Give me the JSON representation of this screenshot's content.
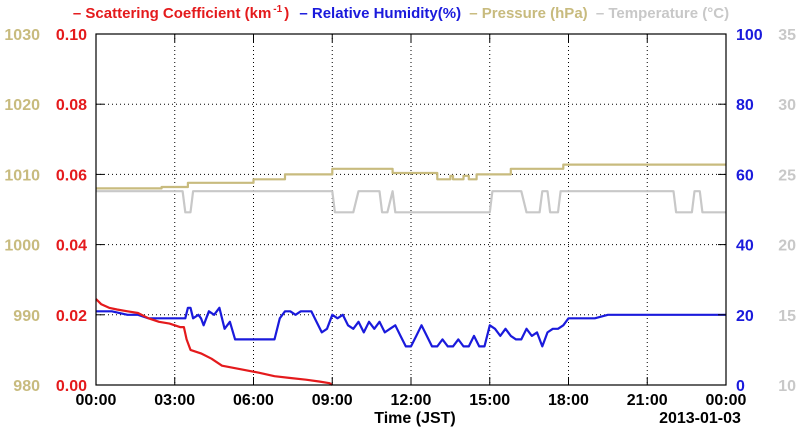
{
  "legend": {
    "scattering": "– Scattering Coefficient (km",
    "scattering_sup": "-1",
    "scattering_close": ")",
    "humidity": "– Relative Humidity(%)",
    "pressure": "– Pressure (hPa)",
    "temperature": "– Temperature (°C)"
  },
  "colors": {
    "scattering": "#e41a1c",
    "humidity": "#1a1adc",
    "pressure": "#c8bb7e",
    "temperature": "#c8c8c8"
  },
  "chart_data": {
    "type": "line",
    "xlabel": "Time (JST)",
    "date_label": "2013-01-03",
    "x_ticks": [
      "00:00",
      "03:00",
      "06:00",
      "09:00",
      "12:00",
      "15:00",
      "18:00",
      "21:00",
      "00:00"
    ],
    "xlim_hours": [
      0,
      24
    ],
    "axes": {
      "pressure": {
        "ticks": [
          "1030",
          "1020",
          "1010",
          "1000",
          "990",
          "980"
        ],
        "range": [
          980,
          1030
        ]
      },
      "scattering": {
        "ticks": [
          "0.10",
          "0.08",
          "0.06",
          "0.04",
          "0.02",
          "0.00"
        ],
        "range": [
          0,
          0.1
        ]
      },
      "humidity": {
        "ticks": [
          "100",
          "80",
          "60",
          "40",
          "20",
          "0"
        ],
        "range": [
          0,
          100
        ]
      },
      "temperature": {
        "ticks": [
          "35",
          "30",
          "25",
          "20",
          "15",
          "10"
        ],
        "range": [
          10,
          35
        ]
      }
    },
    "grid": true,
    "series": [
      {
        "name": "Scattering Coefficient (km-1)",
        "axis": "scattering",
        "points": [
          [
            0,
            0.0245
          ],
          [
            0.2,
            0.023
          ],
          [
            0.5,
            0.022
          ],
          [
            0.8,
            0.0215
          ],
          [
            1.2,
            0.021
          ],
          [
            1.6,
            0.0205
          ],
          [
            2.0,
            0.019
          ],
          [
            2.4,
            0.018
          ],
          [
            2.8,
            0.0175
          ],
          [
            3.2,
            0.0165
          ],
          [
            3.35,
            0.0165
          ],
          [
            3.45,
            0.013
          ],
          [
            3.6,
            0.01
          ],
          [
            4.0,
            0.009
          ],
          [
            4.4,
            0.0075
          ],
          [
            4.8,
            0.0055
          ],
          [
            5.5,
            0.0045
          ],
          [
            6.2,
            0.0035
          ],
          [
            6.8,
            0.0025
          ],
          [
            7.4,
            0.002
          ],
          [
            8.0,
            0.0015
          ],
          [
            8.5,
            0.001
          ],
          [
            8.9,
            0.0005
          ],
          [
            9.0,
            0.0
          ]
        ]
      },
      {
        "name": "Relative Humidity(%)",
        "axis": "humidity",
        "points": [
          [
            0,
            21
          ],
          [
            0.6,
            21
          ],
          [
            1.2,
            20
          ],
          [
            1.6,
            20
          ],
          [
            2.0,
            19
          ],
          [
            3.0,
            19
          ],
          [
            3.2,
            19
          ],
          [
            3.4,
            19
          ],
          [
            3.5,
            22
          ],
          [
            3.6,
            22
          ],
          [
            3.7,
            19
          ],
          [
            3.9,
            20
          ],
          [
            4.0,
            19
          ],
          [
            4.1,
            17
          ],
          [
            4.3,
            21
          ],
          [
            4.5,
            20
          ],
          [
            4.7,
            22
          ],
          [
            4.9,
            16
          ],
          [
            5.1,
            18
          ],
          [
            5.3,
            13
          ],
          [
            6.0,
            13
          ],
          [
            6.3,
            13
          ],
          [
            6.5,
            13
          ],
          [
            6.8,
            13
          ],
          [
            7.0,
            19
          ],
          [
            7.2,
            21
          ],
          [
            7.4,
            21
          ],
          [
            7.6,
            20
          ],
          [
            7.8,
            21
          ],
          [
            8.0,
            21
          ],
          [
            8.2,
            21
          ],
          [
            8.4,
            18
          ],
          [
            8.6,
            15
          ],
          [
            8.8,
            16
          ],
          [
            9.0,
            20
          ],
          [
            9.2,
            19
          ],
          [
            9.4,
            20
          ],
          [
            9.6,
            17
          ],
          [
            9.8,
            16
          ],
          [
            10.0,
            18
          ],
          [
            10.2,
            15
          ],
          [
            10.4,
            18
          ],
          [
            10.6,
            16
          ],
          [
            10.8,
            18
          ],
          [
            11.0,
            15
          ],
          [
            11.2,
            16
          ],
          [
            11.4,
            17
          ],
          [
            11.6,
            14
          ],
          [
            11.8,
            11
          ],
          [
            12.0,
            11
          ],
          [
            12.2,
            14
          ],
          [
            12.4,
            17
          ],
          [
            12.6,
            14
          ],
          [
            12.8,
            11
          ],
          [
            13.0,
            11
          ],
          [
            13.2,
            13
          ],
          [
            13.4,
            11
          ],
          [
            13.6,
            11
          ],
          [
            13.8,
            13
          ],
          [
            14.0,
            11
          ],
          [
            14.2,
            11
          ],
          [
            14.4,
            14
          ],
          [
            14.6,
            11
          ],
          [
            14.8,
            11
          ],
          [
            15.0,
            17
          ],
          [
            15.2,
            16
          ],
          [
            15.4,
            14
          ],
          [
            15.6,
            16
          ],
          [
            15.8,
            14
          ],
          [
            16.0,
            13
          ],
          [
            16.2,
            13
          ],
          [
            16.4,
            16
          ],
          [
            16.6,
            14
          ],
          [
            16.8,
            15
          ],
          [
            17.0,
            11
          ],
          [
            17.2,
            15
          ],
          [
            17.4,
            16
          ],
          [
            17.6,
            16
          ],
          [
            17.8,
            17
          ],
          [
            18.0,
            19
          ],
          [
            18.3,
            19
          ],
          [
            18.6,
            19
          ],
          [
            19.0,
            19
          ],
          [
            19.5,
            20
          ],
          [
            24,
            20
          ]
        ]
      },
      {
        "name": "Pressure (hPa)",
        "axis": "pressure",
        "points": [
          [
            0,
            1008
          ],
          [
            2.5,
            1008
          ],
          [
            2.5,
            1008.2
          ],
          [
            3.5,
            1008.2
          ],
          [
            3.5,
            1008.8
          ],
          [
            6.0,
            1008.8
          ],
          [
            6.0,
            1009.3
          ],
          [
            7.2,
            1009.3
          ],
          [
            7.2,
            1010.0
          ],
          [
            9.0,
            1010.0
          ],
          [
            9.0,
            1010.8
          ],
          [
            11.3,
            1010.8
          ],
          [
            11.3,
            1010.2
          ],
          [
            13.0,
            1010.2
          ],
          [
            13.0,
            1009.3
          ],
          [
            13.5,
            1009.3
          ],
          [
            13.5,
            1009.8
          ],
          [
            13.6,
            1009.8
          ],
          [
            13.6,
            1009.3
          ],
          [
            14.0,
            1009.3
          ],
          [
            14.0,
            1009.8
          ],
          [
            14.2,
            1009.8
          ],
          [
            14.2,
            1009.3
          ],
          [
            14.5,
            1009.3
          ],
          [
            14.5,
            1010.0
          ],
          [
            15.8,
            1010.0
          ],
          [
            15.8,
            1010.8
          ],
          [
            17.8,
            1010.8
          ],
          [
            17.8,
            1011.4
          ],
          [
            24,
            1011.4
          ]
        ]
      },
      {
        "name": "Temperature (°C)",
        "axis": "temperature",
        "points": [
          [
            0,
            23.8
          ],
          [
            3.3,
            23.8
          ],
          [
            3.4,
            22.3
          ],
          [
            3.6,
            22.3
          ],
          [
            3.7,
            23.8
          ],
          [
            9.0,
            23.8
          ],
          [
            9.1,
            22.3
          ],
          [
            9.8,
            22.3
          ],
          [
            10.0,
            23.8
          ],
          [
            10.8,
            23.8
          ],
          [
            10.9,
            22.3
          ],
          [
            11.1,
            22.3
          ],
          [
            11.3,
            23.8
          ],
          [
            11.4,
            22.3
          ],
          [
            15.0,
            22.3
          ],
          [
            15.1,
            23.8
          ],
          [
            16.2,
            23.8
          ],
          [
            16.4,
            22.3
          ],
          [
            16.9,
            22.3
          ],
          [
            17.0,
            23.8
          ],
          [
            17.2,
            23.8
          ],
          [
            17.3,
            22.3
          ],
          [
            17.6,
            22.3
          ],
          [
            17.7,
            23.8
          ],
          [
            22.0,
            23.8
          ],
          [
            22.1,
            22.3
          ],
          [
            22.7,
            22.3
          ],
          [
            22.8,
            23.8
          ],
          [
            23.0,
            23.8
          ],
          [
            23.1,
            22.3
          ],
          [
            24,
            22.3
          ]
        ]
      }
    ]
  }
}
